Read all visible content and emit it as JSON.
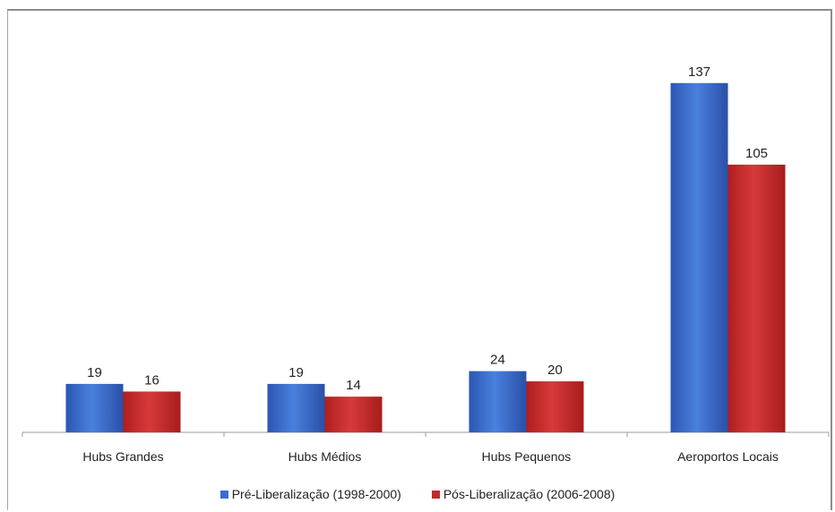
{
  "chart_data": {
    "type": "bar",
    "categories": [
      "Hubs Grandes",
      "Hubs Médios",
      "Hubs Pequenos",
      "Aeroportos Locais"
    ],
    "series": [
      {
        "name": "Pré-Liberalização (1998-2000)",
        "values": [
          19,
          19,
          24,
          137
        ],
        "color": "#3b6ccc"
      },
      {
        "name": "Pós-Liberalização (2006-2008)",
        "values": [
          16,
          14,
          20,
          105
        ],
        "color": "#c42a2a"
      }
    ],
    "title": "",
    "xlabel": "",
    "ylabel": "",
    "ylim": [
      0,
      145
    ],
    "grid": false,
    "data_labels": true,
    "legend_position": "bottom"
  }
}
